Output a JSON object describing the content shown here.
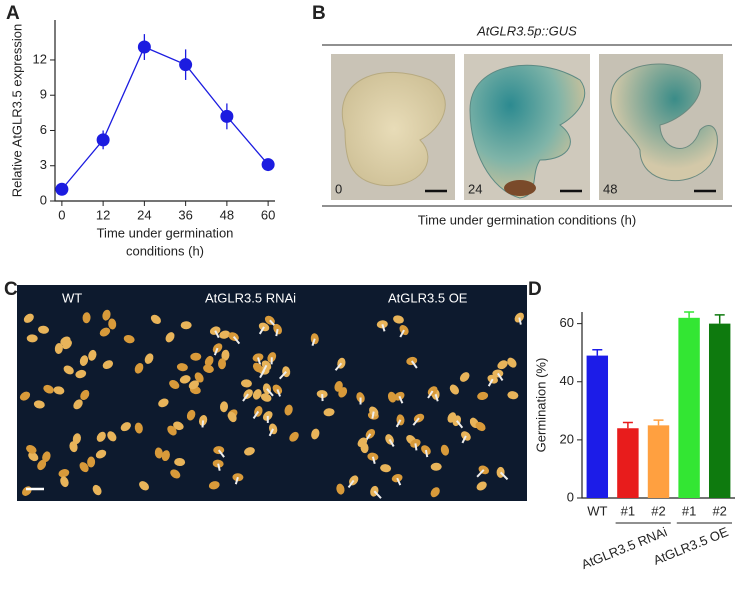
{
  "panel_labels": [
    "A",
    "B",
    "C",
    "D"
  ],
  "chart_data": [
    {
      "type": "line",
      "ylabel": "Relative AtGLR3.5 expression",
      "xlabel": [
        "Time under germination",
        "conditions (h)"
      ],
      "x": [
        0,
        12,
        24,
        36,
        48,
        60
      ],
      "values": [
        1,
        5.2,
        13.1,
        11.6,
        7.2,
        3.1
      ],
      "errors": [
        0.3,
        0.8,
        1.1,
        1.3,
        1.1,
        0.5
      ],
      "color": "#1c1ce0",
      "xlim": [
        -2,
        62
      ],
      "xticks": [
        0,
        12,
        24,
        36,
        48,
        60
      ],
      "ylim": [
        0,
        15.4
      ],
      "yticks": [
        0,
        3,
        6,
        9,
        12
      ]
    },
    {
      "type": "bar",
      "ylabel": "Germination (%)",
      "categories": [
        "WT",
        "#1",
        "#2",
        "#1",
        "#2"
      ],
      "values": [
        49,
        24,
        25,
        62,
        60
      ],
      "errors": [
        2,
        2,
        1.8,
        2,
        3
      ],
      "colors": [
        "#1c1ce8",
        "#e81c1c",
        "#ffa040",
        "#33e633",
        "#0e7a0e"
      ],
      "groups": [
        "AtGLR3.5 RNAi",
        "AtGLR3.5 OE"
      ],
      "ylim": [
        0,
        64
      ],
      "yticks": [
        0,
        20,
        40,
        60
      ]
    }
  ],
  "panel_b": {
    "title": "AtGLR3.5p::GUS",
    "xlabel": "Time under germination conditions (h)",
    "image_labels": [
      "0",
      "24",
      "48"
    ]
  },
  "panel_c": {
    "labels": [
      "WT",
      "AtGLR3.5 RNAi",
      "AtGLR3.5 OE"
    ]
  }
}
